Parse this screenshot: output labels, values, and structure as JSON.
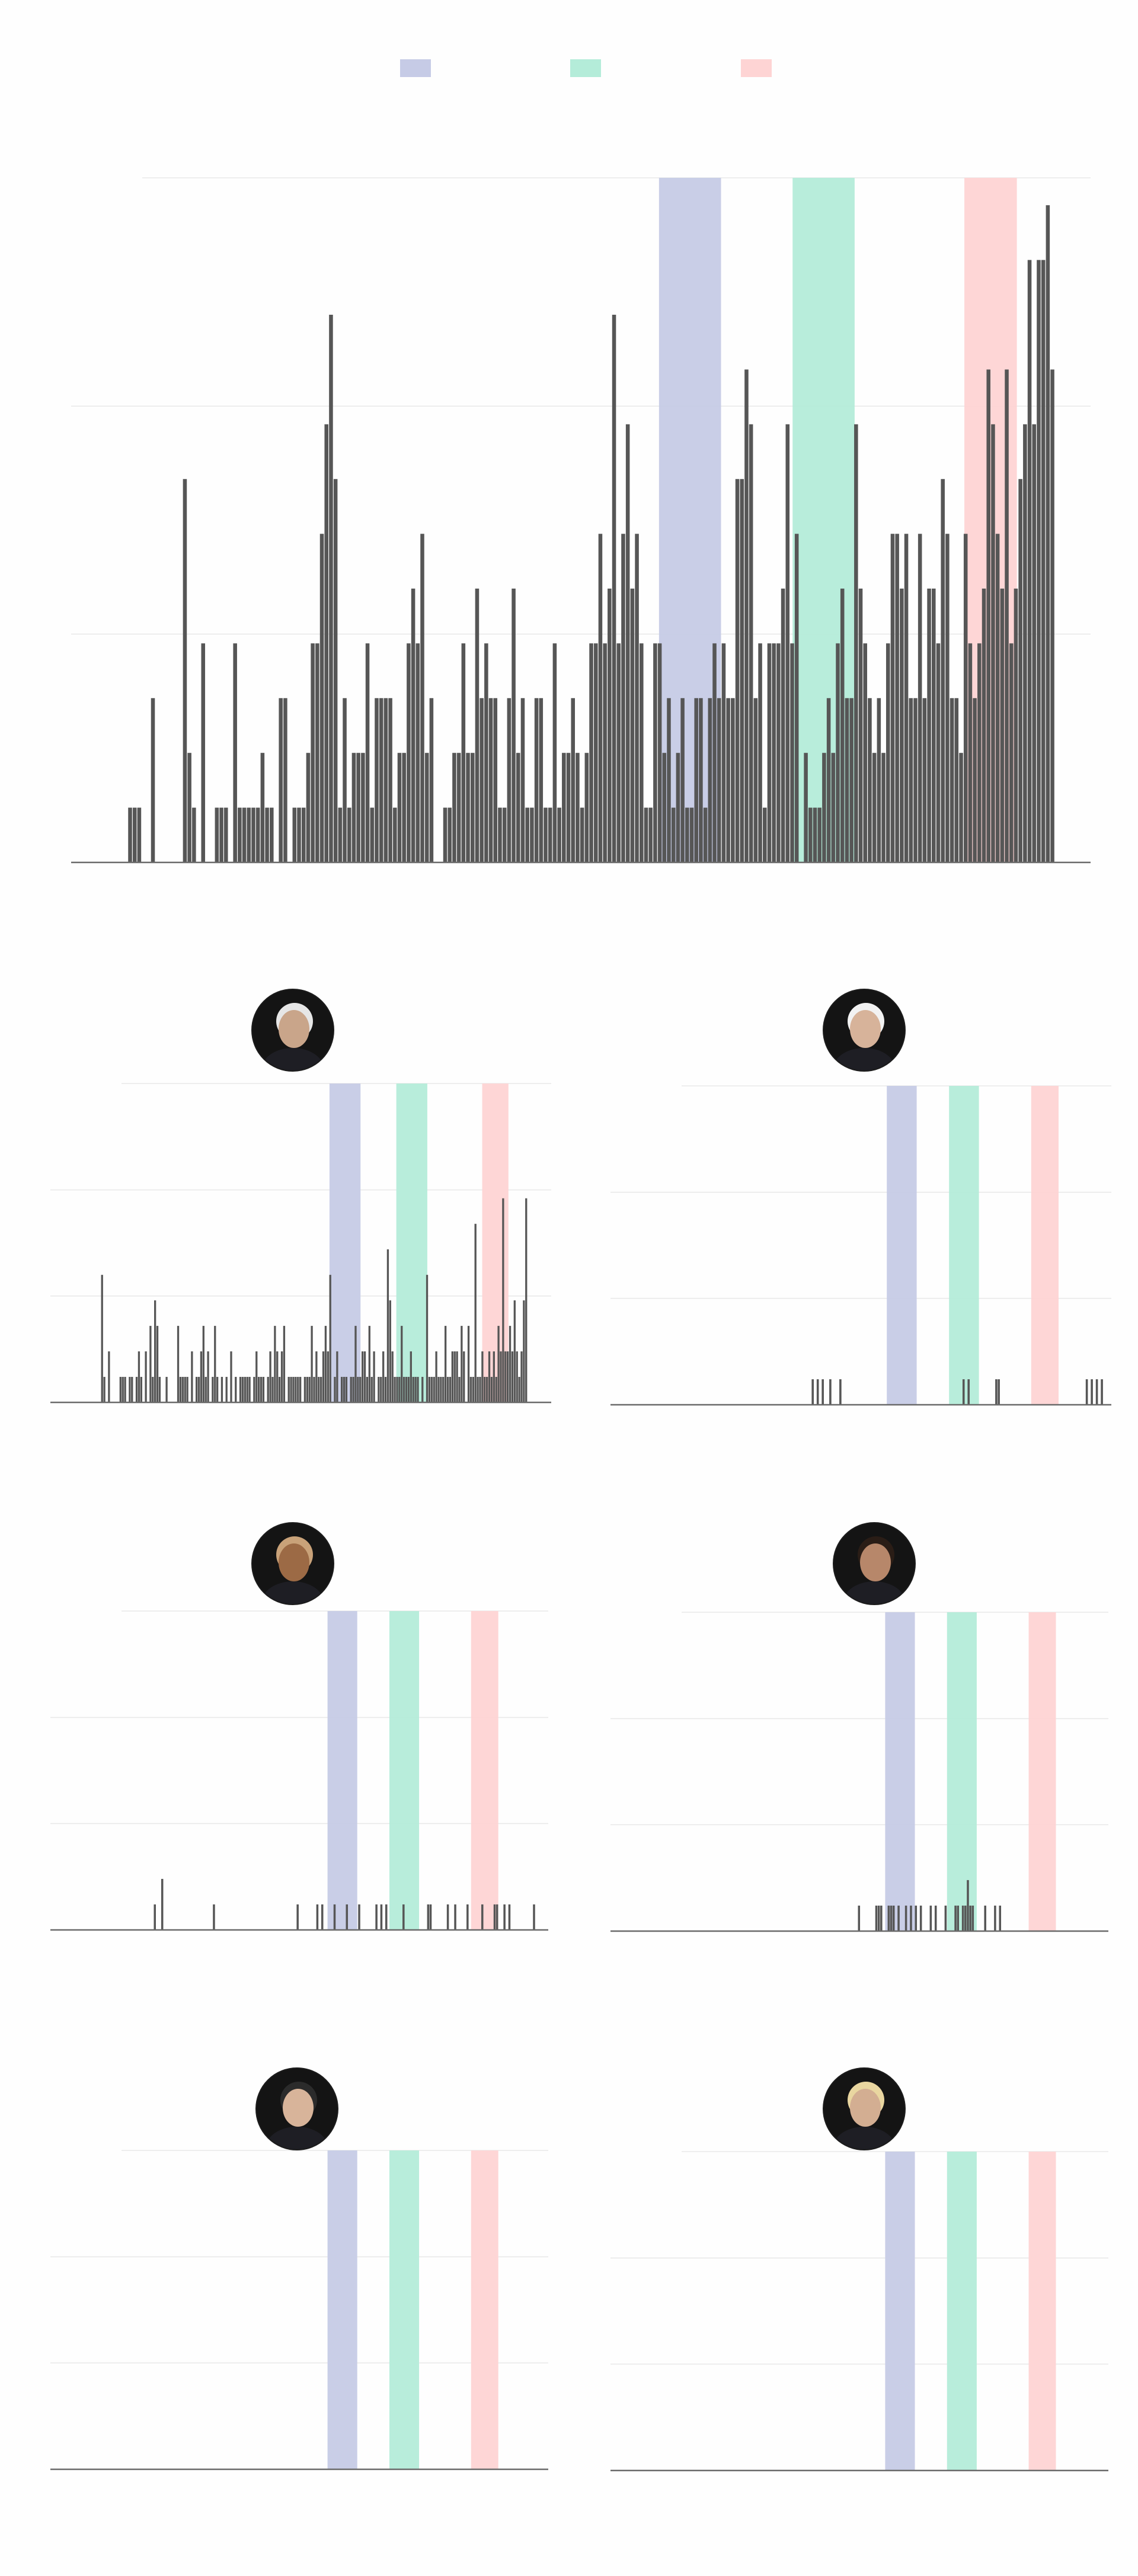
{
  "colors": {
    "bar": "#565656",
    "grid": "#e8e8e8",
    "axis": "#6a6a6a",
    "band_a": "#c6cbe6",
    "band_b": "#b4ecd9",
    "band_c": "#fed4d4"
  },
  "legend": [
    {
      "color": "#c6cbe6"
    },
    {
      "color": "#b4ecd9"
    },
    {
      "color": "#fed4d4"
    }
  ],
  "chart_data": [
    {
      "type": "bar",
      "panel": "overall",
      "xlim": [
        0,
        200
      ],
      "ylim": [
        0,
        12.5
      ],
      "gridlines": [
        4.17,
        8.33,
        12.5
      ],
      "bands": [
        [
          117,
          130
        ],
        [
          145,
          158
        ],
        [
          181,
          192
        ]
      ],
      "values": [
        0,
        0,
        0,
        0,
        0,
        0,
        1,
        1,
        1,
        0,
        0,
        3,
        0,
        0,
        0,
        0,
        0,
        0,
        7,
        2,
        1,
        0,
        4,
        0,
        0,
        1,
        1,
        1,
        0,
        4,
        1,
        1,
        1,
        1,
        1,
        2,
        1,
        1,
        0,
        3,
        3,
        0,
        1,
        1,
        1,
        2,
        4,
        4,
        6,
        8,
        10,
        7,
        1,
        3,
        1,
        2,
        2,
        2,
        4,
        1,
        3,
        3,
        3,
        3,
        1,
        2,
        2,
        4,
        5,
        4,
        6,
        2,
        3,
        0,
        0,
        1,
        1,
        2,
        2,
        4,
        2,
        2,
        5,
        3,
        4,
        3,
        3,
        1,
        1,
        3,
        5,
        2,
        3,
        1,
        1,
        3,
        3,
        1,
        1,
        4,
        1,
        2,
        2,
        3,
        2,
        1,
        2,
        4,
        4,
        6,
        4,
        5,
        10,
        4,
        6,
        8,
        5,
        6,
        4,
        1,
        1,
        4,
        4,
        2,
        3,
        1,
        2,
        3,
        1,
        1,
        3,
        3,
        1,
        3,
        4,
        3,
        4,
        3,
        3,
        7,
        7,
        9,
        8,
        3,
        4,
        1,
        4,
        4,
        4,
        5,
        8,
        4,
        6,
        0,
        2,
        1,
        1,
        1,
        2,
        3,
        2,
        4,
        5,
        3,
        3,
        8,
        5,
        4,
        3,
        2,
        3,
        2,
        4,
        6,
        6,
        5,
        6,
        3,
        3,
        6,
        3,
        5,
        5,
        4,
        7,
        6,
        3,
        3,
        2,
        6,
        4,
        3,
        4,
        5,
        9,
        8,
        6,
        5,
        9,
        4,
        5,
        7,
        8,
        11,
        8,
        11,
        11,
        12,
        9
      ],
      "bar_color": "#565656"
    },
    {
      "type": "bar",
      "panel": "small-1",
      "xlim": [
        0,
        200
      ],
      "ylim": [
        0,
        12.5
      ],
      "gridlines": [
        4.17,
        8.33,
        12.5
      ],
      "bands": [
        [
          117,
          130
        ],
        [
          145,
          158
        ],
        [
          181,
          192
        ]
      ],
      "values": [
        0,
        0,
        0,
        0,
        0,
        0,
        0,
        0,
        0,
        0,
        0,
        0,
        0,
        0,
        0,
        0,
        0,
        0,
        0,
        0,
        0,
        0,
        5,
        1,
        0,
        2,
        0,
        0,
        0,
        0,
        1,
        1,
        1,
        0,
        1,
        1,
        0,
        1,
        2,
        1,
        0,
        2,
        0,
        3,
        1,
        4,
        3,
        1,
        0,
        0,
        1,
        0,
        0,
        0,
        0,
        3,
        1,
        1,
        1,
        1,
        0,
        2,
        0,
        1,
        1,
        2,
        3,
        1,
        2,
        0,
        1,
        3,
        1,
        0,
        1,
        0,
        1,
        0,
        2,
        0,
        1,
        0,
        1,
        1,
        1,
        1,
        1,
        0,
        1,
        2,
        1,
        1,
        1,
        0,
        1,
        2,
        1,
        3,
        2,
        1,
        2,
        3,
        0,
        1,
        1,
        1,
        1,
        1,
        1,
        0,
        1,
        1,
        1,
        3,
        1,
        2,
        1,
        1,
        2,
        3,
        2,
        5,
        0,
        1,
        2,
        0,
        1,
        1,
        1,
        0,
        1,
        1,
        3,
        1,
        1,
        2,
        2,
        1,
        3,
        1,
        2,
        0,
        1,
        1,
        2,
        1,
        6,
        4,
        2,
        1,
        1,
        1,
        3,
        1,
        1,
        1,
        2,
        1,
        1,
        1,
        0,
        1,
        0,
        5,
        1,
        1,
        1,
        2,
        1,
        1,
        1,
        3,
        1,
        1,
        2,
        2,
        2,
        1,
        3,
        2,
        0,
        3,
        1,
        1,
        7,
        1,
        1,
        2,
        1,
        1,
        2,
        1,
        2,
        1,
        3,
        2,
        8,
        2,
        2,
        3,
        2,
        4,
        2,
        1,
        2,
        4,
        8
      ]
    },
    {
      "type": "bar",
      "panel": "small-2",
      "xlim": [
        0,
        200
      ],
      "ylim": [
        0,
        12.5
      ],
      "gridlines": [
        4.17,
        8.33,
        12.5
      ],
      "bands": [
        [
          111,
          123
        ],
        [
          136,
          148
        ],
        [
          169,
          180
        ]
      ],
      "values": [
        0,
        0,
        0,
        0,
        0,
        0,
        0,
        0,
        0,
        0,
        0,
        0,
        0,
        0,
        0,
        0,
        0,
        0,
        0,
        0,
        0,
        0,
        0,
        0,
        0,
        0,
        0,
        0,
        0,
        0,
        0,
        0,
        0,
        0,
        0,
        0,
        0,
        0,
        0,
        0,
        0,
        0,
        0,
        0,
        0,
        0,
        0,
        0,
        0,
        0,
        0,
        0,
        0,
        0,
        0,
        0,
        0,
        0,
        0,
        0,
        0,
        0,
        0,
        0,
        0,
        0,
        0,
        0,
        0,
        0,
        0,
        0,
        0,
        0,
        0,
        0,
        0,
        0,
        0,
        0,
        1,
        0,
        1,
        0,
        1,
        0,
        0,
        1,
        0,
        0,
        0,
        1,
        0,
        0,
        0,
        0,
        0,
        0,
        0,
        0,
        0,
        0,
        0,
        0,
        0,
        0,
        0,
        0,
        0,
        0,
        0,
        0,
        0,
        0,
        0,
        0,
        0,
        0,
        0,
        0,
        0,
        0,
        0,
        0,
        0,
        0,
        0,
        0,
        0,
        0,
        0,
        0,
        0,
        0,
        0,
        0,
        0,
        0,
        0,
        0,
        1,
        0,
        1,
        0,
        0,
        0,
        0,
        0,
        0,
        0,
        0,
        0,
        0,
        1,
        1,
        0,
        0,
        0,
        0,
        0,
        0,
        0,
        0,
        0,
        0,
        0,
        0,
        0,
        0,
        0,
        0,
        0,
        0,
        0,
        0,
        0,
        0,
        0,
        0,
        0,
        0,
        0,
        0,
        0,
        0,
        0,
        0,
        0,
        0,
        1,
        0,
        1,
        0,
        1,
        0,
        1,
        0,
        0
      ]
    },
    {
      "type": "bar",
      "panel": "small-3",
      "xlim": [
        0,
        200
      ],
      "ylim": [
        0,
        12.5
      ],
      "gridlines": [
        4.17,
        8.33,
        12.5
      ],
      "bands": [
        [
          112,
          124
        ],
        [
          137,
          149
        ],
        [
          170,
          181
        ]
      ],
      "values": [
        0,
        0,
        0,
        0,
        0,
        0,
        0,
        0,
        0,
        0,
        0,
        0,
        0,
        0,
        0,
        0,
        0,
        0,
        0,
        0,
        0,
        0,
        0,
        0,
        0,
        0,
        0,
        0,
        0,
        0,
        0,
        0,
        0,
        0,
        0,
        0,
        0,
        0,
        0,
        0,
        0,
        0,
        1,
        0,
        0,
        2,
        0,
        0,
        0,
        0,
        0,
        0,
        0,
        0,
        0,
        0,
        0,
        0,
        0,
        0,
        0,
        0,
        0,
        0,
        0,
        0,
        1,
        0,
        0,
        0,
        0,
        0,
        0,
        0,
        0,
        0,
        0,
        0,
        0,
        0,
        0,
        0,
        0,
        0,
        0,
        0,
        0,
        0,
        0,
        0,
        0,
        0,
        0,
        0,
        0,
        0,
        0,
        0,
        0,
        0,
        1,
        0,
        0,
        0,
        0,
        0,
        0,
        0,
        1,
        0,
        1,
        0,
        0,
        0,
        0,
        1,
        0,
        0,
        0,
        0,
        1,
        0,
        0,
        0,
        0,
        1,
        0,
        0,
        0,
        0,
        0,
        0,
        1,
        0,
        1,
        0,
        1,
        0,
        0,
        0,
        0,
        0,
        0,
        1,
        0,
        0,
        0,
        0,
        0,
        0,
        0,
        0,
        0,
        1,
        1,
        0,
        0,
        0,
        0,
        0,
        0,
        1,
        0,
        0,
        1,
        0,
        0,
        0,
        0,
        1,
        0,
        0,
        0,
        0,
        0,
        1,
        0,
        0,
        0,
        0,
        1,
        1,
        0,
        0,
        1,
        0,
        1,
        0,
        0,
        0,
        0,
        0,
        0,
        0,
        0,
        0,
        1,
        0,
        0,
        0,
        0
      ]
    },
    {
      "type": "bar",
      "panel": "small-4",
      "xlim": [
        0,
        200
      ],
      "ylim": [
        0,
        12.5
      ],
      "gridlines": [
        4.17,
        8.33,
        12.5
      ],
      "bands": [
        [
          111,
          123
        ],
        [
          136,
          148
        ],
        [
          169,
          180
        ]
      ],
      "values": [
        0,
        0,
        0,
        0,
        0,
        0,
        0,
        0,
        0,
        0,
        0,
        0,
        0,
        0,
        0,
        0,
        0,
        0,
        0,
        0,
        0,
        0,
        0,
        0,
        0,
        0,
        0,
        0,
        0,
        0,
        0,
        0,
        0,
        0,
        0,
        0,
        0,
        0,
        0,
        0,
        0,
        0,
        0,
        0,
        0,
        0,
        0,
        0,
        0,
        0,
        0,
        0,
        0,
        0,
        0,
        0,
        0,
        0,
        0,
        0,
        0,
        0,
        0,
        0,
        0,
        0,
        0,
        0,
        0,
        0,
        0,
        0,
        0,
        0,
        0,
        0,
        0,
        0,
        0,
        0,
        0,
        0,
        0,
        0,
        0,
        0,
        0,
        0,
        0,
        0,
        0,
        0,
        0,
        0,
        0,
        0,
        0,
        0,
        0,
        0,
        1,
        0,
        0,
        0,
        0,
        0,
        0,
        1,
        1,
        1,
        0,
        0,
        1,
        1,
        1,
        0,
        1,
        0,
        0,
        1,
        0,
        1,
        0,
        1,
        0,
        1,
        0,
        0,
        0,
        1,
        0,
        1,
        0,
        0,
        0,
        1,
        0,
        0,
        0,
        1,
        1,
        0,
        1,
        1,
        2,
        1,
        1,
        0,
        0,
        0,
        0,
        1,
        0,
        0,
        0,
        1,
        0,
        1,
        0,
        0,
        0,
        0,
        0,
        0,
        0,
        0,
        0,
        0,
        0,
        0,
        0,
        0,
        0,
        0,
        0,
        0,
        0,
        0,
        0,
        0,
        0,
        0,
        0,
        0,
        0,
        0,
        0,
        0,
        0,
        0,
        0,
        0,
        0,
        0,
        0,
        0,
        0,
        0,
        0,
        0
      ]
    },
    {
      "type": "bar",
      "panel": "small-5",
      "xlim": [
        0,
        200
      ],
      "ylim": [
        0,
        12.5
      ],
      "gridlines": [
        4.17,
        8.33,
        12.5
      ],
      "bands": [
        [
          112,
          124
        ],
        [
          137,
          149
        ],
        [
          170,
          181
        ]
      ],
      "values": [
        0,
        0,
        0,
        0,
        0,
        0,
        0,
        0,
        0,
        0,
        0,
        0,
        0,
        0,
        0,
        0,
        0,
        0,
        0,
        0,
        0,
        0,
        0,
        0,
        0,
        0,
        0,
        0,
        0,
        0,
        0,
        0,
        0,
        0,
        0,
        0,
        0,
        0,
        0,
        0,
        0,
        0,
        0,
        0,
        0,
        0,
        0,
        0,
        0,
        0,
        0,
        0,
        0,
        0,
        0,
        0,
        0,
        0,
        0,
        0,
        0,
        0,
        0,
        0,
        0,
        0,
        0,
        0,
        0,
        0,
        0,
        0,
        0,
        0,
        0,
        0,
        0,
        0,
        0,
        0,
        0,
        0,
        0,
        0,
        0,
        0,
        0,
        0,
        0,
        0,
        0,
        0,
        0,
        0,
        0,
        0,
        0,
        0,
        0,
        0,
        0,
        0,
        0,
        0,
        0,
        0,
        0,
        0,
        0,
        0,
        0,
        0,
        0,
        0,
        0,
        0,
        0,
        0,
        0,
        0,
        0,
        0,
        0,
        0,
        0,
        0,
        0,
        0,
        0,
        0,
        0,
        0,
        0,
        0,
        0,
        0,
        0,
        0,
        0,
        0,
        0,
        0,
        0,
        0,
        0,
        0,
        0,
        0,
        0,
        0,
        0,
        0,
        0,
        0,
        0,
        0,
        0,
        0,
        0,
        0,
        0,
        0,
        0,
        0,
        0,
        0,
        0,
        0,
        0,
        0,
        0,
        0,
        0,
        0,
        0,
        0,
        0,
        0,
        0,
        0,
        0,
        0,
        0,
        0,
        0,
        0,
        0,
        0,
        0,
        0,
        0,
        0,
        0,
        0,
        0,
        0,
        0,
        0,
        0,
        0,
        0
      ]
    },
    {
      "type": "bar",
      "panel": "small-6",
      "xlim": [
        0,
        200
      ],
      "ylim": [
        0,
        12.5
      ],
      "gridlines": [
        4.17,
        8.33,
        12.5
      ],
      "bands": [
        [
          111,
          123
        ],
        [
          136,
          148
        ],
        [
          169,
          180
        ]
      ],
      "values": [
        0,
        0,
        0,
        0,
        0,
        0,
        0,
        0,
        0,
        0,
        0,
        0,
        0,
        0,
        0,
        0,
        0,
        0,
        0,
        0,
        0,
        0,
        0,
        0,
        0,
        0,
        0,
        0,
        0,
        0,
        0,
        0,
        0,
        0,
        0,
        0,
        0,
        0,
        0,
        0,
        0,
        0,
        0,
        0,
        0,
        0,
        0,
        0,
        0,
        0,
        0,
        0,
        0,
        0,
        0,
        0,
        0,
        0,
        0,
        0,
        0,
        0,
        0,
        0,
        0,
        0,
        0,
        0,
        0,
        0,
        0,
        0,
        0,
        0,
        0,
        0,
        0,
        0,
        0,
        0,
        0,
        0,
        0,
        0,
        0,
        0,
        0,
        0,
        0,
        0,
        0,
        0,
        0,
        0,
        0,
        0,
        0,
        0,
        0,
        0,
        0,
        0,
        0,
        0,
        0,
        0,
        0,
        0,
        0,
        0,
        0,
        0,
        0,
        0,
        0,
        0,
        0,
        0,
        0,
        0,
        0,
        0,
        0,
        0,
        0,
        0,
        0,
        0,
        0,
        0,
        0,
        0,
        0,
        0,
        0,
        0,
        0,
        0,
        0,
        0,
        0,
        0,
        0,
        0,
        0,
        0,
        0,
        0,
        0,
        0,
        0,
        0,
        0,
        0,
        0,
        0,
        0,
        0,
        0,
        0,
        0,
        0,
        0,
        0,
        0,
        0,
        0,
        0,
        0,
        0,
        0,
        0,
        0,
        0,
        0,
        0,
        0,
        0,
        0,
        0,
        0,
        0,
        0,
        0,
        0,
        0,
        0,
        0,
        0,
        0,
        0,
        0,
        0,
        0,
        0,
        0,
        0,
        0,
        0,
        0,
        0
      ]
    }
  ],
  "avatars": [
    {
      "name": "avatar-1",
      "skin": "#c9a58a",
      "hair": "#e6e6e6"
    },
    {
      "name": "avatar-2",
      "skin": "#d7b39a",
      "hair": "#f2f2f2"
    },
    {
      "name": "avatar-3",
      "skin": "#9c6a45",
      "hair": "#c9a279"
    },
    {
      "name": "avatar-4",
      "skin": "#b7876a",
      "hair": "#2a1d16"
    },
    {
      "name": "avatar-5",
      "skin": "#d8b49a",
      "hair": "#2b2b2b"
    },
    {
      "name": "avatar-6",
      "skin": "#d3ae92",
      "hair": "#e9d6a0"
    }
  ]
}
